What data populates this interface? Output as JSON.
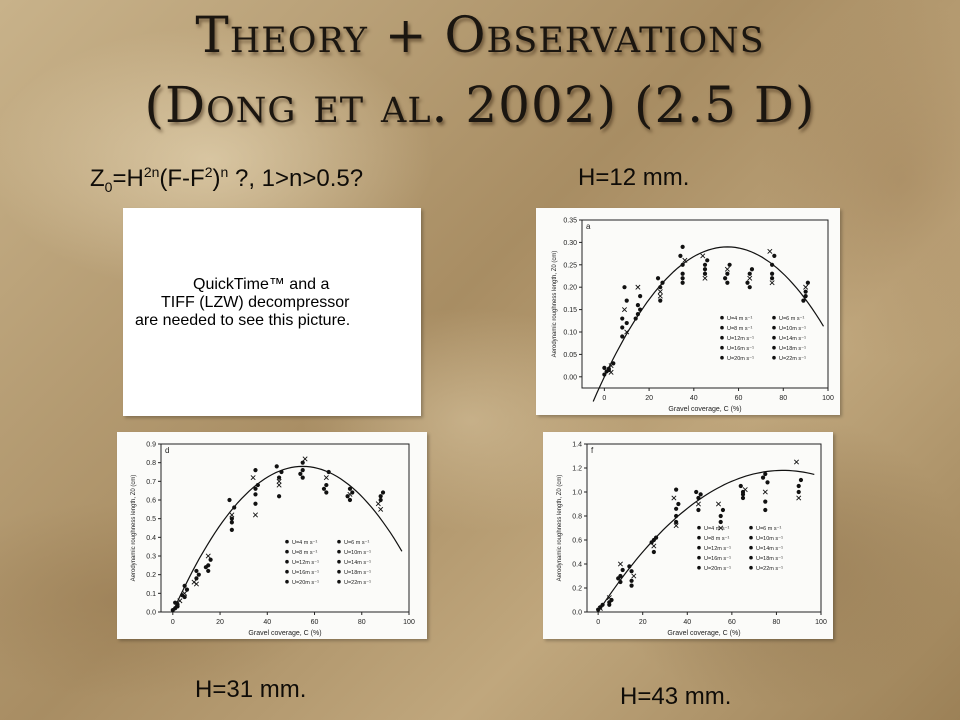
{
  "slide": {
    "title_line1": "Theory + Observations",
    "title_line2": "(Dong et al. 2002) (2.5 D)",
    "formula_parts": [
      "Z",
      "0",
      "=H",
      "2n",
      "(F-F",
      "2",
      ")",
      "n",
      " ?, 1>n>0.5?"
    ],
    "labels": {
      "h12": "H=12 mm.",
      "h31": "H=31 mm.",
      "h43": "H=43 mm."
    },
    "quicktime": {
      "line1": "QuickTime™ and a",
      "line2": "TIFF (LZW) decompressor",
      "line3": "are needed to see this picture."
    }
  },
  "chart_data": [
    {
      "panel": "a",
      "type": "scatter",
      "xlabel": "Gravel coverage, C (%)",
      "ylabel": "Aerodynamic roughness length, Z0 (cm)",
      "xlim": [
        -10,
        100
      ],
      "ylim": [
        -0.025,
        0.35
      ],
      "xticks": [
        "0",
        "20",
        "40",
        "60",
        "80",
        "100"
      ],
      "yticks": [
        "0.00",
        "0.05",
        "0.10",
        "0.15",
        "0.20",
        "0.25",
        "0.30",
        "0.35"
      ],
      "legend": [
        "U=4 m s⁻¹",
        "U=6 m s⁻¹",
        "U=8 m s⁻¹",
        "U=10m s⁻¹",
        "U=12m s⁻¹",
        "U=14m s⁻¹",
        "U=16m s⁻¹",
        "U=18m s⁻¹",
        "U=20m s⁻¹",
        "U=22m s⁻¹"
      ],
      "points": [
        [
          0,
          0.005
        ],
        [
          1,
          0.012
        ],
        [
          2,
          0.018
        ],
        [
          3,
          0.025
        ],
        [
          4,
          0.03
        ],
        [
          2,
          0.015
        ],
        [
          0,
          0.02
        ],
        [
          3,
          0.01
        ],
        [
          8,
          0.09
        ],
        [
          8,
          0.11
        ],
        [
          8,
          0.13
        ],
        [
          9,
          0.15
        ],
        [
          10,
          0.12
        ],
        [
          10,
          0.17
        ],
        [
          9,
          0.2
        ],
        [
          10,
          0.1
        ],
        [
          15,
          0.14
        ],
        [
          15,
          0.16
        ],
        [
          16,
          0.18
        ],
        [
          15,
          0.2
        ],
        [
          14,
          0.13
        ],
        [
          16,
          0.15
        ],
        [
          25,
          0.17
        ],
        [
          25,
          0.19
        ],
        [
          25,
          0.2
        ],
        [
          26,
          0.21
        ],
        [
          24,
          0.22
        ],
        [
          25,
          0.18
        ],
        [
          35,
          0.21
        ],
        [
          35,
          0.23
        ],
        [
          35,
          0.25
        ],
        [
          36,
          0.26
        ],
        [
          34,
          0.27
        ],
        [
          35,
          0.29
        ],
        [
          35,
          0.22
        ],
        [
          45,
          0.22
        ],
        [
          45,
          0.24
        ],
        [
          45,
          0.25
        ],
        [
          46,
          0.26
        ],
        [
          44,
          0.27
        ],
        [
          45,
          0.23
        ],
        [
          55,
          0.21
        ],
        [
          55,
          0.23
        ],
        [
          55,
          0.24
        ],
        [
          56,
          0.25
        ],
        [
          54,
          0.22
        ],
        [
          65,
          0.2
        ],
        [
          65,
          0.22
        ],
        [
          65,
          0.23
        ],
        [
          66,
          0.24
        ],
        [
          64,
          0.21
        ],
        [
          75,
          0.21
        ],
        [
          75,
          0.23
        ],
        [
          75,
          0.25
        ],
        [
          76,
          0.27
        ],
        [
          74,
          0.28
        ],
        [
          75,
          0.22
        ],
        [
          90,
          0.18
        ],
        [
          90,
          0.19
        ],
        [
          90,
          0.2
        ],
        [
          91,
          0.21
        ],
        [
          89,
          0.17
        ]
      ],
      "curve": {
        "peak_x": 55,
        "peak_y": 0.29,
        "x_from": -5,
        "x_to": 98
      }
    },
    {
      "panel": "d",
      "type": "scatter",
      "xlabel": "Gravel coverage, C (%)",
      "ylabel": "Aerodynamic roughness length, Z0 (cm)",
      "xlim": [
        -5,
        100
      ],
      "ylim": [
        0,
        0.9
      ],
      "xticks": [
        "0",
        "20",
        "40",
        "60",
        "80",
        "100"
      ],
      "yticks": [
        "0.0",
        "0.1",
        "0.2",
        "0.3",
        "0.4",
        "0.5",
        "0.6",
        "0.7",
        "0.8",
        "0.9"
      ],
      "legend": [
        "U=4 m s⁻¹",
        "U=6 m s⁻¹",
        "U=8 m s⁻¹",
        "U=10m s⁻¹",
        "U=12m s⁻¹",
        "U=14m s⁻¹",
        "U=16m s⁻¹",
        "U=18m s⁻¹",
        "U=20m s⁻¹",
        "U=22m s⁻¹"
      ],
      "points": [
        [
          0,
          0.01
        ],
        [
          1,
          0.02
        ],
        [
          2,
          0.04
        ],
        [
          3,
          0.06
        ],
        [
          2,
          0.03
        ],
        [
          1,
          0.05
        ],
        [
          5,
          0.08
        ],
        [
          5,
          0.1
        ],
        [
          6,
          0.12
        ],
        [
          5,
          0.14
        ],
        [
          4,
          0.09
        ],
        [
          10,
          0.15
        ],
        [
          10,
          0.18
        ],
        [
          11,
          0.2
        ],
        [
          10,
          0.22
        ],
        [
          9,
          0.16
        ],
        [
          15,
          0.22
        ],
        [
          15,
          0.25
        ],
        [
          16,
          0.28
        ],
        [
          15,
          0.3
        ],
        [
          14,
          0.24
        ],
        [
          25,
          0.44
        ],
        [
          25,
          0.48
        ],
        [
          25,
          0.52
        ],
        [
          26,
          0.56
        ],
        [
          24,
          0.6
        ],
        [
          25,
          0.5
        ],
        [
          35,
          0.52
        ],
        [
          35,
          0.58
        ],
        [
          35,
          0.63
        ],
        [
          36,
          0.68
        ],
        [
          34,
          0.72
        ],
        [
          35,
          0.76
        ],
        [
          35,
          0.66
        ],
        [
          45,
          0.62
        ],
        [
          45,
          0.68
        ],
        [
          45,
          0.72
        ],
        [
          46,
          0.75
        ],
        [
          44,
          0.78
        ],
        [
          45,
          0.7
        ],
        [
          55,
          0.72
        ],
        [
          55,
          0.76
        ],
        [
          55,
          0.8
        ],
        [
          56,
          0.82
        ],
        [
          54,
          0.74
        ],
        [
          65,
          0.64
        ],
        [
          65,
          0.68
        ],
        [
          65,
          0.72
        ],
        [
          66,
          0.75
        ],
        [
          64,
          0.66
        ],
        [
          75,
          0.6
        ],
        [
          75,
          0.63
        ],
        [
          75,
          0.66
        ],
        [
          76,
          0.64
        ],
        [
          74,
          0.62
        ],
        [
          88,
          0.55
        ],
        [
          88,
          0.6
        ],
        [
          88,
          0.62
        ],
        [
          89,
          0.64
        ],
        [
          87,
          0.58
        ]
      ],
      "curve": {
        "peak_x": 55,
        "peak_y": 0.78,
        "x_from": 0,
        "x_to": 97
      }
    },
    {
      "panel": "f",
      "type": "scatter",
      "xlabel": "Gravel coverage, C (%)",
      "ylabel": "Aerodynamic roughness length, Z0 (cm)",
      "xlim": [
        -5,
        100
      ],
      "ylim": [
        0,
        1.4
      ],
      "xticks": [
        "0",
        "20",
        "40",
        "60",
        "80",
        "100"
      ],
      "yticks": [
        "0.0",
        "0.2",
        "0.4",
        "0.6",
        "0.8",
        "1.0",
        "1.2",
        "1.4"
      ],
      "legend": [
        "U=4 m s⁻¹",
        "U=6 m s⁻¹",
        "U=8 m s⁻¹",
        "U=10m s⁻¹",
        "U=12m s⁻¹",
        "U=14m s⁻¹",
        "U=16m s⁻¹",
        "U=18m s⁻¹",
        "U=20m s⁻¹",
        "U=22m s⁻¹"
      ],
      "points": [
        [
          0,
          0.02
        ],
        [
          1,
          0.04
        ],
        [
          2,
          0.06
        ],
        [
          1,
          0.03
        ],
        [
          5,
          0.06
        ],
        [
          5,
          0.08
        ],
        [
          6,
          0.1
        ],
        [
          5,
          0.12
        ],
        [
          10,
          0.25
        ],
        [
          10,
          0.3
        ],
        [
          11,
          0.35
        ],
        [
          10,
          0.4
        ],
        [
          9,
          0.28
        ],
        [
          15,
          0.22
        ],
        [
          15,
          0.26
        ],
        [
          16,
          0.3
        ],
        [
          15,
          0.34
        ],
        [
          14,
          0.38
        ],
        [
          25,
          0.5
        ],
        [
          25,
          0.55
        ],
        [
          25,
          0.6
        ],
        [
          26,
          0.62
        ],
        [
          24,
          0.58
        ],
        [
          35,
          0.72
        ],
        [
          35,
          0.8
        ],
        [
          35,
          0.86
        ],
        [
          36,
          0.9
        ],
        [
          34,
          0.95
        ],
        [
          35,
          1.02
        ],
        [
          35,
          0.75
        ],
        [
          45,
          0.85
        ],
        [
          45,
          0.9
        ],
        [
          45,
          0.95
        ],
        [
          46,
          0.98
        ],
        [
          44,
          1.0
        ],
        [
          55,
          0.7
        ],
        [
          55,
          0.75
        ],
        [
          55,
          0.8
        ],
        [
          56,
          0.85
        ],
        [
          54,
          0.9
        ],
        [
          65,
          0.95
        ],
        [
          65,
          0.98
        ],
        [
          65,
          1.0
        ],
        [
          66,
          1.02
        ],
        [
          64,
          1.05
        ],
        [
          75,
          0.85
        ],
        [
          75,
          0.92
        ],
        [
          75,
          1.0
        ],
        [
          76,
          1.08
        ],
        [
          74,
          1.12
        ],
        [
          75,
          1.15
        ],
        [
          90,
          0.95
        ],
        [
          90,
          1.0
        ],
        [
          90,
          1.05
        ],
        [
          91,
          1.1
        ],
        [
          89,
          1.25
        ]
      ],
      "curve": {
        "peak_x": 83,
        "peak_y": 1.18,
        "x_from": 0,
        "x_to": 97
      }
    }
  ]
}
